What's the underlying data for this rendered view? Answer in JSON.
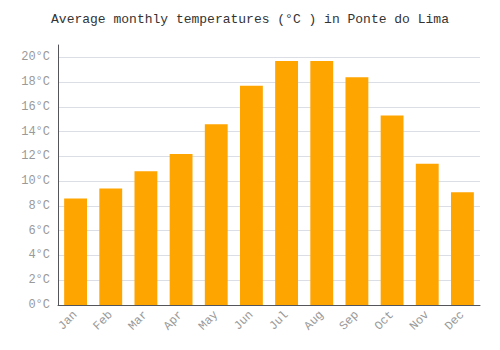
{
  "chart_data": {
    "type": "bar",
    "title": "Average monthly temperatures (°C ) in Ponte do Lima",
    "categories": [
      "Jan",
      "Feb",
      "Mar",
      "Apr",
      "May",
      "Jun",
      "Jul",
      "Aug",
      "Sep",
      "Oct",
      "Nov",
      "Dec"
    ],
    "values": [
      8.6,
      9.4,
      10.8,
      12.2,
      14.6,
      17.7,
      19.7,
      19.7,
      18.4,
      15.3,
      11.4,
      9.1
    ],
    "color": "#FFA500",
    "ylim": [
      0,
      21
    ],
    "yticks": [
      {
        "value": 0,
        "label": "0°C"
      },
      {
        "value": 2,
        "label": "2°C"
      },
      {
        "value": 4,
        "label": "4°C"
      },
      {
        "value": 6,
        "label": "6°C"
      },
      {
        "value": 8,
        "label": "8°C"
      },
      {
        "value": 10,
        "label": "10°C"
      },
      {
        "value": 12,
        "label": "12°C"
      },
      {
        "value": 14,
        "label": "14°C"
      },
      {
        "value": 16,
        "label": "16°C"
      },
      {
        "value": 18,
        "label": "18°C"
      },
      {
        "value": 20,
        "label": "20°C"
      }
    ],
    "grid": true
  }
}
